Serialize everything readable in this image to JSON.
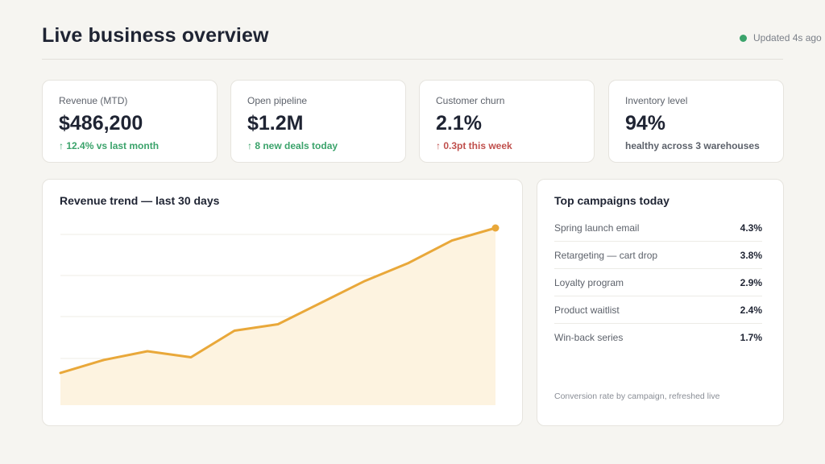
{
  "header": {
    "title": "Live business overview",
    "status": "Updated 4s ago",
    "status_color": "#3ba36b"
  },
  "kpis": [
    {
      "label": "Revenue (MTD)",
      "value": "$486,200",
      "delta": "↑ 12.4% vs last month",
      "trend": "up"
    },
    {
      "label": "Open pipeline",
      "value": "$1.2M",
      "delta": "↑ 8 new deals today",
      "trend": "up"
    },
    {
      "label": "Customer churn",
      "value": "2.1%",
      "delta": "↑ 0.3pt this week",
      "trend": "down"
    },
    {
      "label": "Inventory level",
      "value": "94%",
      "delta": "healthy across 3 warehouses",
      "trend": "neutral"
    }
  ],
  "chart": {
    "title": "Revenue trend — last 30 days"
  },
  "chart_data": {
    "type": "area",
    "title": "Revenue trend — last 30 days",
    "xlabel": "",
    "ylabel": "",
    "x": [
      1,
      2,
      3,
      4,
      5,
      6,
      7,
      8,
      9,
      10,
      11
    ],
    "values": [
      8.5,
      11.9,
      14.2,
      12.6,
      19.6,
      21.3,
      27.0,
      32.7,
      37.4,
      43.3,
      46.6
    ],
    "ylim": [
      0,
      50
    ],
    "grid": true,
    "legend": "none",
    "colors": {
      "line": "#e9a83a",
      "fill": "#fdf3e0"
    }
  },
  "campaigns": {
    "title": "Top campaigns today",
    "items": [
      {
        "name": "Spring launch email",
        "rate": "4.3%"
      },
      {
        "name": "Retargeting — cart drop",
        "rate": "3.8%"
      },
      {
        "name": "Loyalty program",
        "rate": "2.9%"
      },
      {
        "name": "Product waitlist",
        "rate": "2.4%"
      },
      {
        "name": "Win-back series",
        "rate": "1.7%"
      }
    ],
    "footnote": "Conversion rate by campaign, refreshed live"
  }
}
